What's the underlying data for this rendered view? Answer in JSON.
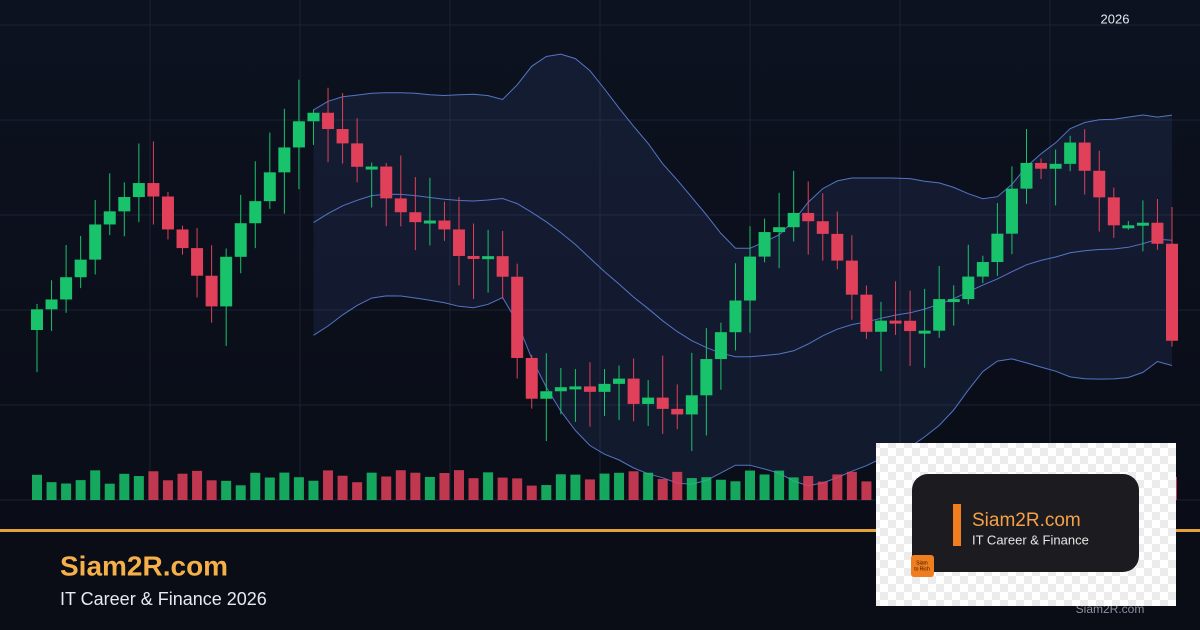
{
  "header": {
    "year": "2026"
  },
  "brand": {
    "title": "Siam2R.com",
    "tagline": "IT Career & Finance 2026"
  },
  "logo": {
    "name": "Siam2R.com",
    "tagline": "IT Career & Finance",
    "icon_lines": [
      "Siam",
      "to Rich"
    ]
  },
  "footer": {
    "watermark": "Siam2R.com"
  }
}
